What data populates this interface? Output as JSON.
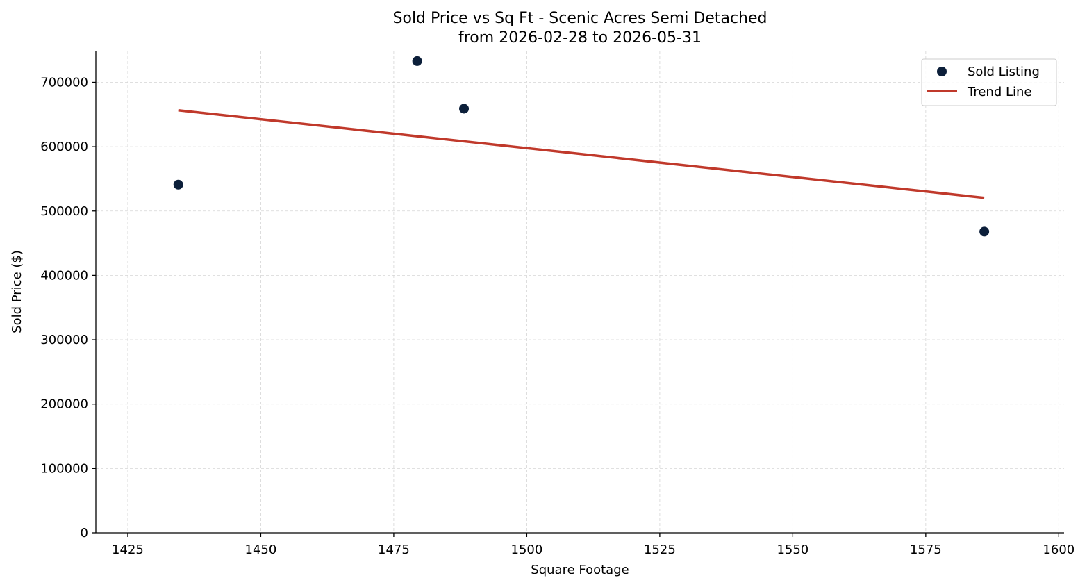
{
  "chart_data": {
    "type": "scatter",
    "title": "Sold Price vs Sq Ft - Scenic Acres Semi Detached",
    "subtitle": "from 2026-02-28 to 2026-05-31",
    "xlabel": "Square Footage",
    "ylabel": "Sold Price ($)",
    "xlim": [
      1419,
      1601
    ],
    "ylim": [
      0,
      748000
    ],
    "xticks": [
      1425,
      1450,
      1475,
      1500,
      1525,
      1550,
      1575,
      1600
    ],
    "yticks": [
      0,
      100000,
      200000,
      300000,
      400000,
      500000,
      600000,
      700000
    ],
    "grid": true,
    "legend_position": "top-right",
    "colors": {
      "points": "#0c1f3a",
      "trend": "#c0392b",
      "grid": "#d5d5d5"
    },
    "series": [
      {
        "name": "Sold Listing",
        "kind": "scatter",
        "points": [
          {
            "x": 1434.5,
            "y": 541000
          },
          {
            "x": 1479.4,
            "y": 733000
          },
          {
            "x": 1488.2,
            "y": 659000
          },
          {
            "x": 1586.0,
            "y": 468000
          }
        ]
      },
      {
        "name": "Trend Line",
        "kind": "line",
        "points": [
          {
            "x": 1434.5,
            "y": 656500
          },
          {
            "x": 1586.0,
            "y": 520500
          }
        ]
      }
    ]
  }
}
